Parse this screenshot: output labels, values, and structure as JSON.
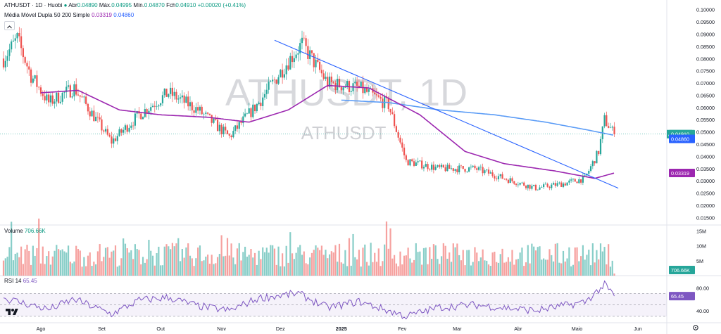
{
  "header": {
    "symbol": "ATHUSDT · 1D · Huobi",
    "open_label": "Abr",
    "open": "0.04890",
    "high_label": "Máx.",
    "high": "0.04995",
    "low_label": "Mín.",
    "low": "0.04870",
    "close_label": "Fch",
    "close": "0.04910",
    "change": "+0.00020 (+0.41%)",
    "indicator": "Média Móvel Dupla 50 200 Simple",
    "ma50": "0.03319",
    "ma200": "0.04860"
  },
  "watermark": {
    "big": "ATHUSDT, 1D",
    "small": "ATHUSDT"
  },
  "volume_pane": {
    "label": "Volume",
    "value": "706.66K",
    "ticks": [
      "15M",
      "10M",
      "5M"
    ]
  },
  "rsi_pane": {
    "label": "RSI",
    "length": "14",
    "value": "65.45",
    "ticks": [
      "80.00",
      "40.00"
    ]
  },
  "price_tags": {
    "symbol": "ATHUSDT",
    "close": "0.04910",
    "ma200": "0.04860",
    "ma50": "0.03319"
  },
  "colors": {
    "up": "#26a69a",
    "down": "#ef5350",
    "ma50": "#9c27b0",
    "ma200": "#5b9cf6",
    "trend": "#2962ff",
    "rsi": "#7e57c2"
  },
  "icons": {
    "settings": "gear-icon",
    "logo": "tradingview-logo-icon",
    "collapse": "chevron-up-icon"
  },
  "chart_data": {
    "type": "candlestick",
    "timeframe": "1D",
    "y_axis_ticks": [
      "0.10000",
      "0.09500",
      "0.09000",
      "0.08500",
      "0.08000",
      "0.07500",
      "0.07000",
      "0.06500",
      "0.06000",
      "0.05500",
      "0.05000",
      "0.04500",
      "0.04000",
      "0.03500",
      "0.03000",
      "0.02500",
      "0.02000",
      "0.01500"
    ],
    "x_axis_ticks": [
      "Ago",
      "Set",
      "Out",
      "Nov",
      "Dez",
      "2025",
      "Fev",
      "Mar",
      "Abr",
      "Maio",
      "Jun"
    ],
    "ylim": [
      0.0125,
      0.1005
    ],
    "close_anchors": [
      {
        "date": "2024-07-13",
        "close": 0.08
      },
      {
        "date": "2024-07-20",
        "close": 0.088
      },
      {
        "date": "2024-07-27",
        "close": 0.073
      },
      {
        "date": "2024-08-05",
        "close": 0.062
      },
      {
        "date": "2024-08-18",
        "close": 0.068
      },
      {
        "date": "2024-09-06",
        "close": 0.046
      },
      {
        "date": "2024-09-20",
        "close": 0.057
      },
      {
        "date": "2024-10-05",
        "close": 0.066
      },
      {
        "date": "2024-10-20",
        "close": 0.059
      },
      {
        "date": "2024-11-05",
        "close": 0.048
      },
      {
        "date": "2024-11-20",
        "close": 0.062
      },
      {
        "date": "2024-12-05",
        "close": 0.079
      },
      {
        "date": "2024-12-12",
        "close": 0.086
      },
      {
        "date": "2024-12-25",
        "close": 0.07
      },
      {
        "date": "2025-01-10",
        "close": 0.068
      },
      {
        "date": "2025-01-25",
        "close": 0.061
      },
      {
        "date": "2025-02-03",
        "close": 0.038
      },
      {
        "date": "2025-02-20",
        "close": 0.035
      },
      {
        "date": "2025-03-10",
        "close": 0.035
      },
      {
        "date": "2025-03-25",
        "close": 0.031
      },
      {
        "date": "2025-04-10",
        "close": 0.027
      },
      {
        "date": "2025-04-25",
        "close": 0.029
      },
      {
        "date": "2025-05-05",
        "close": 0.031
      },
      {
        "date": "2025-05-12",
        "close": 0.042
      },
      {
        "date": "2025-05-15",
        "close": 0.055
      },
      {
        "date": "2025-05-20",
        "close": 0.0491
      }
    ],
    "ma50": [
      {
        "date": "2024-08-01",
        "value": 0.066
      },
      {
        "date": "2024-08-20",
        "value": 0.067
      },
      {
        "date": "2024-09-10",
        "value": 0.059
      },
      {
        "date": "2024-10-01",
        "value": 0.057
      },
      {
        "date": "2024-10-25",
        "value": 0.056
      },
      {
        "date": "2024-11-15",
        "value": 0.054
      },
      {
        "date": "2024-12-05",
        "value": 0.059
      },
      {
        "date": "2024-12-25",
        "value": 0.069
      },
      {
        "date": "2025-01-15",
        "value": 0.068
      },
      {
        "date": "2025-02-10",
        "value": 0.057
      },
      {
        "date": "2025-03-05",
        "value": 0.042
      },
      {
        "date": "2025-03-25",
        "value": 0.037
      },
      {
        "date": "2025-04-20",
        "value": 0.034
      },
      {
        "date": "2025-05-10",
        "value": 0.031
      },
      {
        "date": "2025-05-20",
        "value": 0.03319
      }
    ],
    "ma200": [
      {
        "date": "2025-01-01",
        "value": 0.063
      },
      {
        "date": "2025-01-25",
        "value": 0.062
      },
      {
        "date": "2025-02-20",
        "value": 0.059
      },
      {
        "date": "2025-03-20",
        "value": 0.057
      },
      {
        "date": "2025-04-15",
        "value": 0.054
      },
      {
        "date": "2025-05-05",
        "value": 0.051
      },
      {
        "date": "2025-05-20",
        "value": 0.0486
      }
    ],
    "trendline": [
      {
        "date": "2024-11-28",
        "value": 0.0875
      },
      {
        "date": "2025-05-22",
        "value": 0.027
      }
    ],
    "rsi": [
      {
        "date": "2024-07-13",
        "value": 62
      },
      {
        "date": "2024-08-05",
        "value": 42
      },
      {
        "date": "2024-08-18",
        "value": 60
      },
      {
        "date": "2024-09-06",
        "value": 34
      },
      {
        "date": "2024-09-20",
        "value": 58
      },
      {
        "date": "2024-10-05",
        "value": 63
      },
      {
        "date": "2024-10-20",
        "value": 48
      },
      {
        "date": "2024-11-05",
        "value": 40
      },
      {
        "date": "2024-11-20",
        "value": 62
      },
      {
        "date": "2024-12-10",
        "value": 70
      },
      {
        "date": "2024-12-25",
        "value": 45
      },
      {
        "date": "2025-01-10",
        "value": 56
      },
      {
        "date": "2025-02-03",
        "value": 30
      },
      {
        "date": "2025-02-20",
        "value": 46
      },
      {
        "date": "2025-03-10",
        "value": 50
      },
      {
        "date": "2025-04-10",
        "value": 40
      },
      {
        "date": "2025-05-05",
        "value": 55
      },
      {
        "date": "2025-05-15",
        "value": 85
      },
      {
        "date": "2025-05-20",
        "value": 65.45
      }
    ]
  }
}
